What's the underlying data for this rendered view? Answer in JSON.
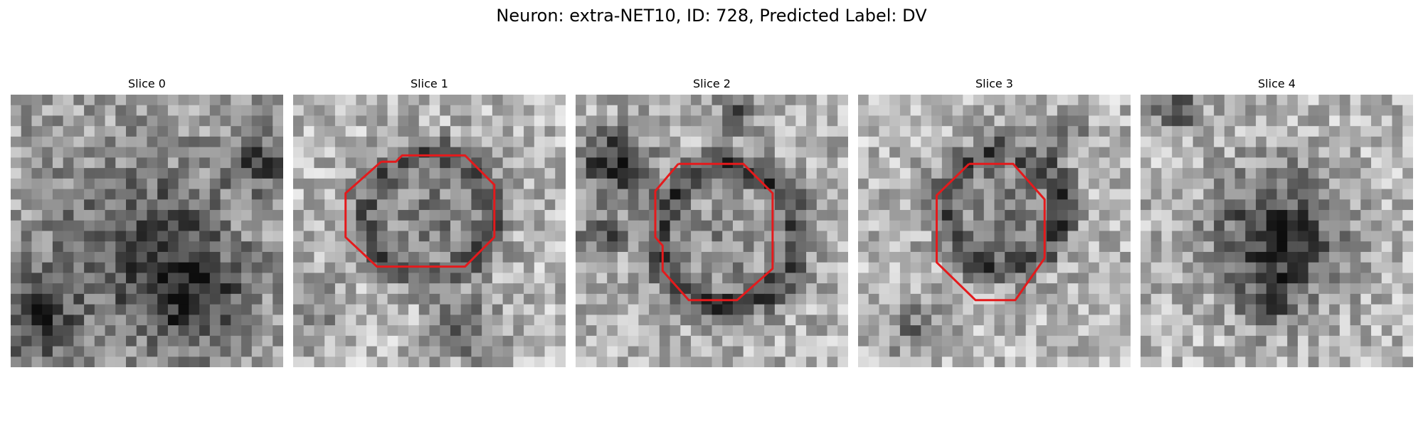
{
  "figure": {
    "title": "Neuron: extra-NET10, ID: 728, Predicted Label: DV"
  },
  "colors": {
    "contour": "#e41a1c",
    "background": "#ffffff"
  },
  "panels": [
    {
      "title": "Slice 0",
      "has_contour": false
    },
    {
      "title": "Slice 1",
      "has_contour": true
    },
    {
      "title": "Slice 2",
      "has_contour": true
    },
    {
      "title": "Slice 3",
      "has_contour": true
    },
    {
      "title": "Slice 4",
      "has_contour": false
    }
  ]
}
